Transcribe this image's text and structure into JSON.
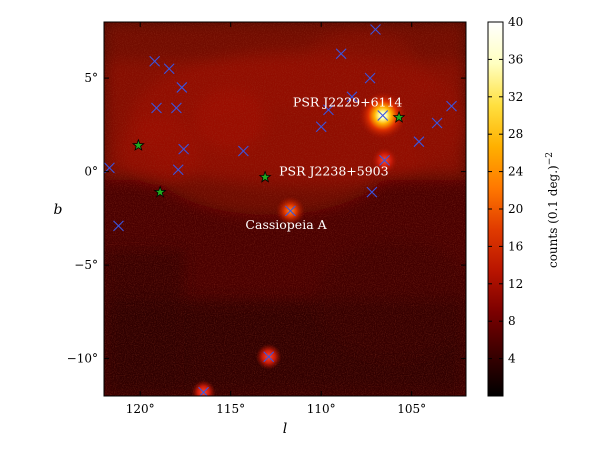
{
  "chart_data": {
    "type": "heatmap",
    "title": "",
    "xlabel": "l",
    "ylabel": "b",
    "xlim": [
      122,
      102
    ],
    "ylim": [
      -12,
      8
    ],
    "x_ticks": [
      {
        "value": 120,
        "label": "120°"
      },
      {
        "value": 115,
        "label": "115°"
      },
      {
        "value": 110,
        "label": "110°"
      },
      {
        "value": 105,
        "label": "105°"
      }
    ],
    "y_ticks": [
      {
        "value": 5,
        "label": "5°"
      },
      {
        "value": 0,
        "label": "0°"
      },
      {
        "value": -5,
        "label": "−5°"
      },
      {
        "value": -10,
        "label": "−10°"
      }
    ],
    "colorbar": {
      "label": "counts (0.1 deg.)",
      "label_exponent": "−2",
      "min": 0,
      "max": 40,
      "ticks": [
        4,
        8,
        12,
        16,
        20,
        24,
        28,
        32,
        36,
        40
      ],
      "colormap": [
        "#000000",
        "#3a0000",
        "#7a0000",
        "#b81400",
        "#e03a00",
        "#ff7800",
        "#ffb000",
        "#ffe040",
        "#ffffc0",
        "#ffffff"
      ]
    },
    "annotations": [
      {
        "text": "PSR J2229+6114",
        "x": 106.7,
        "y": 3.0
      },
      {
        "text": "PSR J2238+5903",
        "x": 106.8,
        "y": 0.5
      },
      {
        "text": "Cassiopeia A",
        "x": 111.7,
        "y": -2.1
      }
    ],
    "bright_sources": [
      {
        "x": 106.6,
        "y": 3.0,
        "counts": 40
      },
      {
        "x": 106.5,
        "y": 0.6,
        "counts": 14
      },
      {
        "x": 111.7,
        "y": -2.1,
        "counts": 16
      },
      {
        "x": 112.9,
        "y": -9.9,
        "counts": 12
      },
      {
        "x": 116.5,
        "y": -11.8,
        "counts": 10
      }
    ],
    "series": [
      {
        "marker": "x",
        "color": "#3a55e0",
        "points": [
          {
            "x": 121.7,
            "y": 0.2
          },
          {
            "x": 121.2,
            "y": -2.9
          },
          {
            "x": 119.2,
            "y": 5.9
          },
          {
            "x": 118.4,
            "y": 5.5
          },
          {
            "x": 117.7,
            "y": 4.5
          },
          {
            "x": 119.1,
            "y": 3.4
          },
          {
            "x": 118.0,
            "y": 3.4
          },
          {
            "x": 117.6,
            "y": 1.2
          },
          {
            "x": 117.9,
            "y": 0.1
          },
          {
            "x": 114.3,
            "y": 1.1
          },
          {
            "x": 109.6,
            "y": 3.3
          },
          {
            "x": 110.0,
            "y": 2.4
          },
          {
            "x": 108.9,
            "y": 6.3
          },
          {
            "x": 108.3,
            "y": 4.0
          },
          {
            "x": 107.3,
            "y": 5.0
          },
          {
            "x": 107.0,
            "y": 7.6
          },
          {
            "x": 106.6,
            "y": 3.0
          },
          {
            "x": 106.5,
            "y": 0.6
          },
          {
            "x": 107.2,
            "y": -1.1
          },
          {
            "x": 104.6,
            "y": 1.6
          },
          {
            "x": 103.6,
            "y": 2.6
          },
          {
            "x": 102.8,
            "y": 3.5
          },
          {
            "x": 111.7,
            "y": -2.1
          },
          {
            "x": 112.9,
            "y": -9.9
          },
          {
            "x": 116.5,
            "y": -11.8
          }
        ]
      },
      {
        "marker": "star",
        "color": "#22aa22",
        "points": [
          {
            "x": 120.1,
            "y": 1.4
          },
          {
            "x": 118.9,
            "y": -1.1
          },
          {
            "x": 113.1,
            "y": -0.3
          },
          {
            "x": 105.7,
            "y": 2.9
          }
        ]
      }
    ]
  }
}
